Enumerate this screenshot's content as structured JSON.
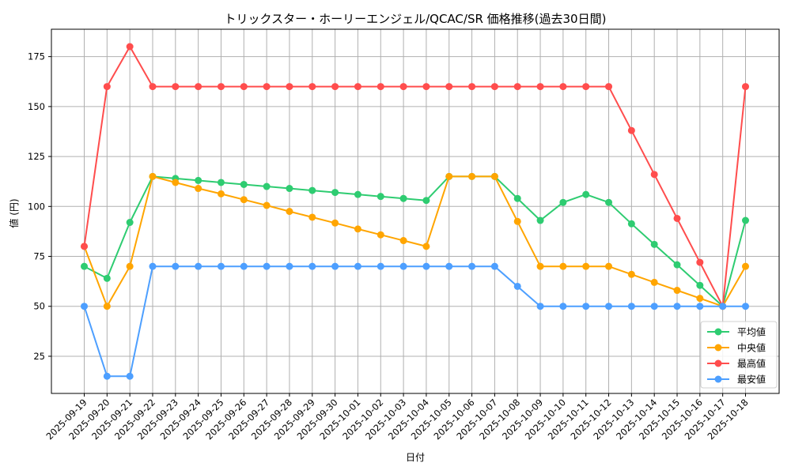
{
  "chart_data": {
    "type": "line",
    "title": "トリックスター・ホーリーエンジェル/QCAC/SR 価格推移(過去30日間)",
    "xlabel": "日付",
    "ylabel": "値 (円)",
    "ylim": [
      6.4,
      188.7
    ],
    "yticks": [
      25,
      50,
      75,
      100,
      125,
      150,
      175
    ],
    "grid": true,
    "legend_position": "lower right",
    "categories": [
      "2025-09-19",
      "2025-09-20",
      "2025-09-21",
      "2025-09-22",
      "2025-09-23",
      "2025-09-24",
      "2025-09-25",
      "2025-09-26",
      "2025-09-27",
      "2025-09-28",
      "2025-09-29",
      "2025-09-30",
      "2025-10-01",
      "2025-10-02",
      "2025-10-03",
      "2025-10-04",
      "2025-10-05",
      "2025-10-06",
      "2025-10-07",
      "2025-10-08",
      "2025-10-09",
      "2025-10-10",
      "2025-10-11",
      "2025-10-12",
      "2025-10-13",
      "2025-10-14",
      "2025-10-15",
      "2025-10-16",
      "2025-10-17",
      "2025-10-18"
    ],
    "series": [
      {
        "name": "平均値",
        "color": "#2ecc71",
        "values": [
          70,
          64,
          92,
          115,
          114,
          113,
          112,
          111,
          110,
          109,
          108,
          107,
          106,
          105,
          104,
          103,
          115,
          115,
          115,
          104,
          93,
          102,
          106,
          102,
          91.3,
          81,
          70.8,
          60.5,
          50,
          93
        ]
      },
      {
        "name": "中央値",
        "color": "#ffa500",
        "values": [
          80,
          50,
          70,
          115,
          112,
          109,
          106.3,
          103.4,
          100.5,
          97.5,
          94.6,
          91.7,
          88.7,
          85.8,
          82.9,
          80,
          115,
          115,
          115,
          92.5,
          70,
          70,
          70,
          70,
          66,
          62,
          58,
          54,
          50,
          70
        ]
      },
      {
        "name": "最高値",
        "color": "#ff4d4d",
        "values": [
          80,
          160,
          180,
          160,
          160,
          160,
          160,
          160,
          160,
          160,
          160,
          160,
          160,
          160,
          160,
          160,
          160,
          160,
          160,
          160,
          160,
          160,
          160,
          160,
          138,
          116,
          94,
          72,
          50,
          160
        ]
      },
      {
        "name": "最安値",
        "color": "#4d9fff",
        "values": [
          50,
          15,
          15,
          70,
          70,
          70,
          70,
          70,
          70,
          70,
          70,
          70,
          70,
          70,
          70,
          70,
          70,
          70,
          70,
          60,
          50,
          50,
          50,
          50,
          50,
          50,
          50,
          50,
          50,
          50
        ]
      }
    ]
  },
  "legend": {
    "items": [
      "平均値",
      "中央値",
      "最高値",
      "最安値"
    ]
  }
}
